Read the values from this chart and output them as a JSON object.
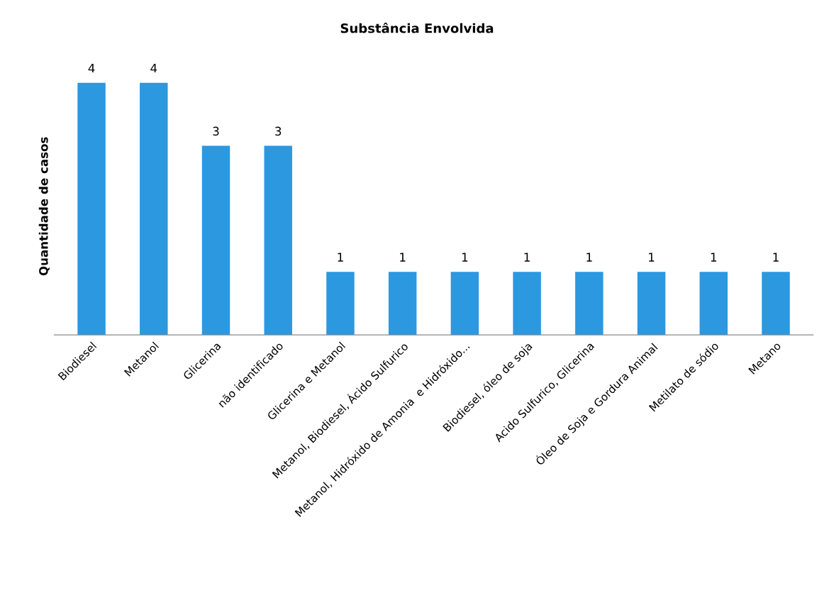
{
  "chart_data": {
    "type": "bar",
    "title": "Substância Envolvida",
    "ylabel": "Quantidade de casos",
    "categories": [
      "Biodiesel",
      "Metanol",
      "Glicerina",
      "não identificado",
      "Glicerina e Metanol",
      "Metanol, Biodiesel, Ácido Sulfurico",
      "Metanol, Hidróxido de Amonia  e Hidróxido...",
      "Biodiesel, óleo de soja",
      "Acido Sulfurico, Glicerina",
      "Óleo de Soja e Gordura Animal",
      "Metilato de sódio",
      "Metano"
    ],
    "values": [
      4,
      4,
      3,
      3,
      1,
      1,
      1,
      1,
      1,
      1,
      1,
      1
    ],
    "color": "#2b98e0",
    "data_labels": true,
    "grid": false,
    "legend": false,
    "tick_labels": "x"
  }
}
